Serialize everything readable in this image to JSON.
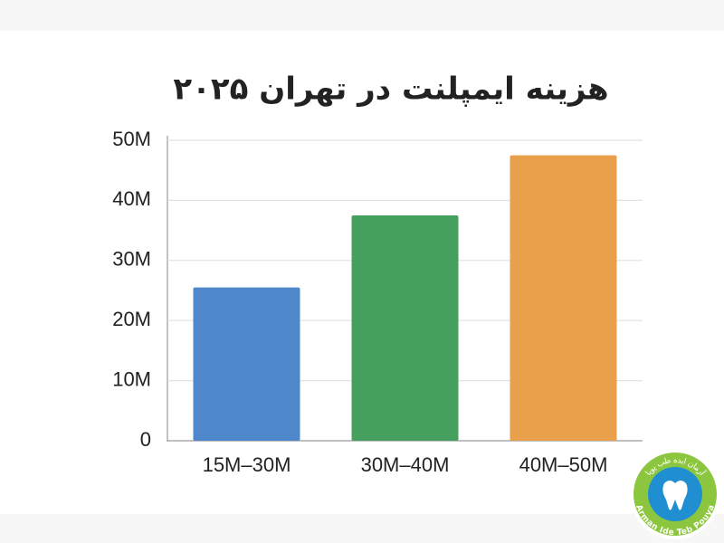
{
  "chart_data": {
    "type": "bar",
    "title": "هزینه ایمپلنت در تهران ۲۰۲۵",
    "categories": [
      "15M–30M",
      "30M–40M",
      "40M–50M"
    ],
    "values": [
      25500000,
      37500000,
      47500000
    ],
    "colors": [
      "#4f88ca",
      "#45a05d",
      "#e9a04a"
    ],
    "ylim": [
      0,
      50000000
    ],
    "yticks": [
      0,
      {
        "value": 10000000,
        "label": "10M"
      },
      {
        "value": 20000000,
        "label": "20M"
      },
      {
        "value": 30000000,
        "label": "30M"
      },
      {
        "value": 40000000,
        "label": "40M"
      },
      {
        "value": 50000000,
        "label": "50M"
      }
    ],
    "grid": true
  },
  "logo": {
    "text_fa": "آرمان ایده طب پویا",
    "text_en": "Arman Ide Teb Pouya"
  }
}
